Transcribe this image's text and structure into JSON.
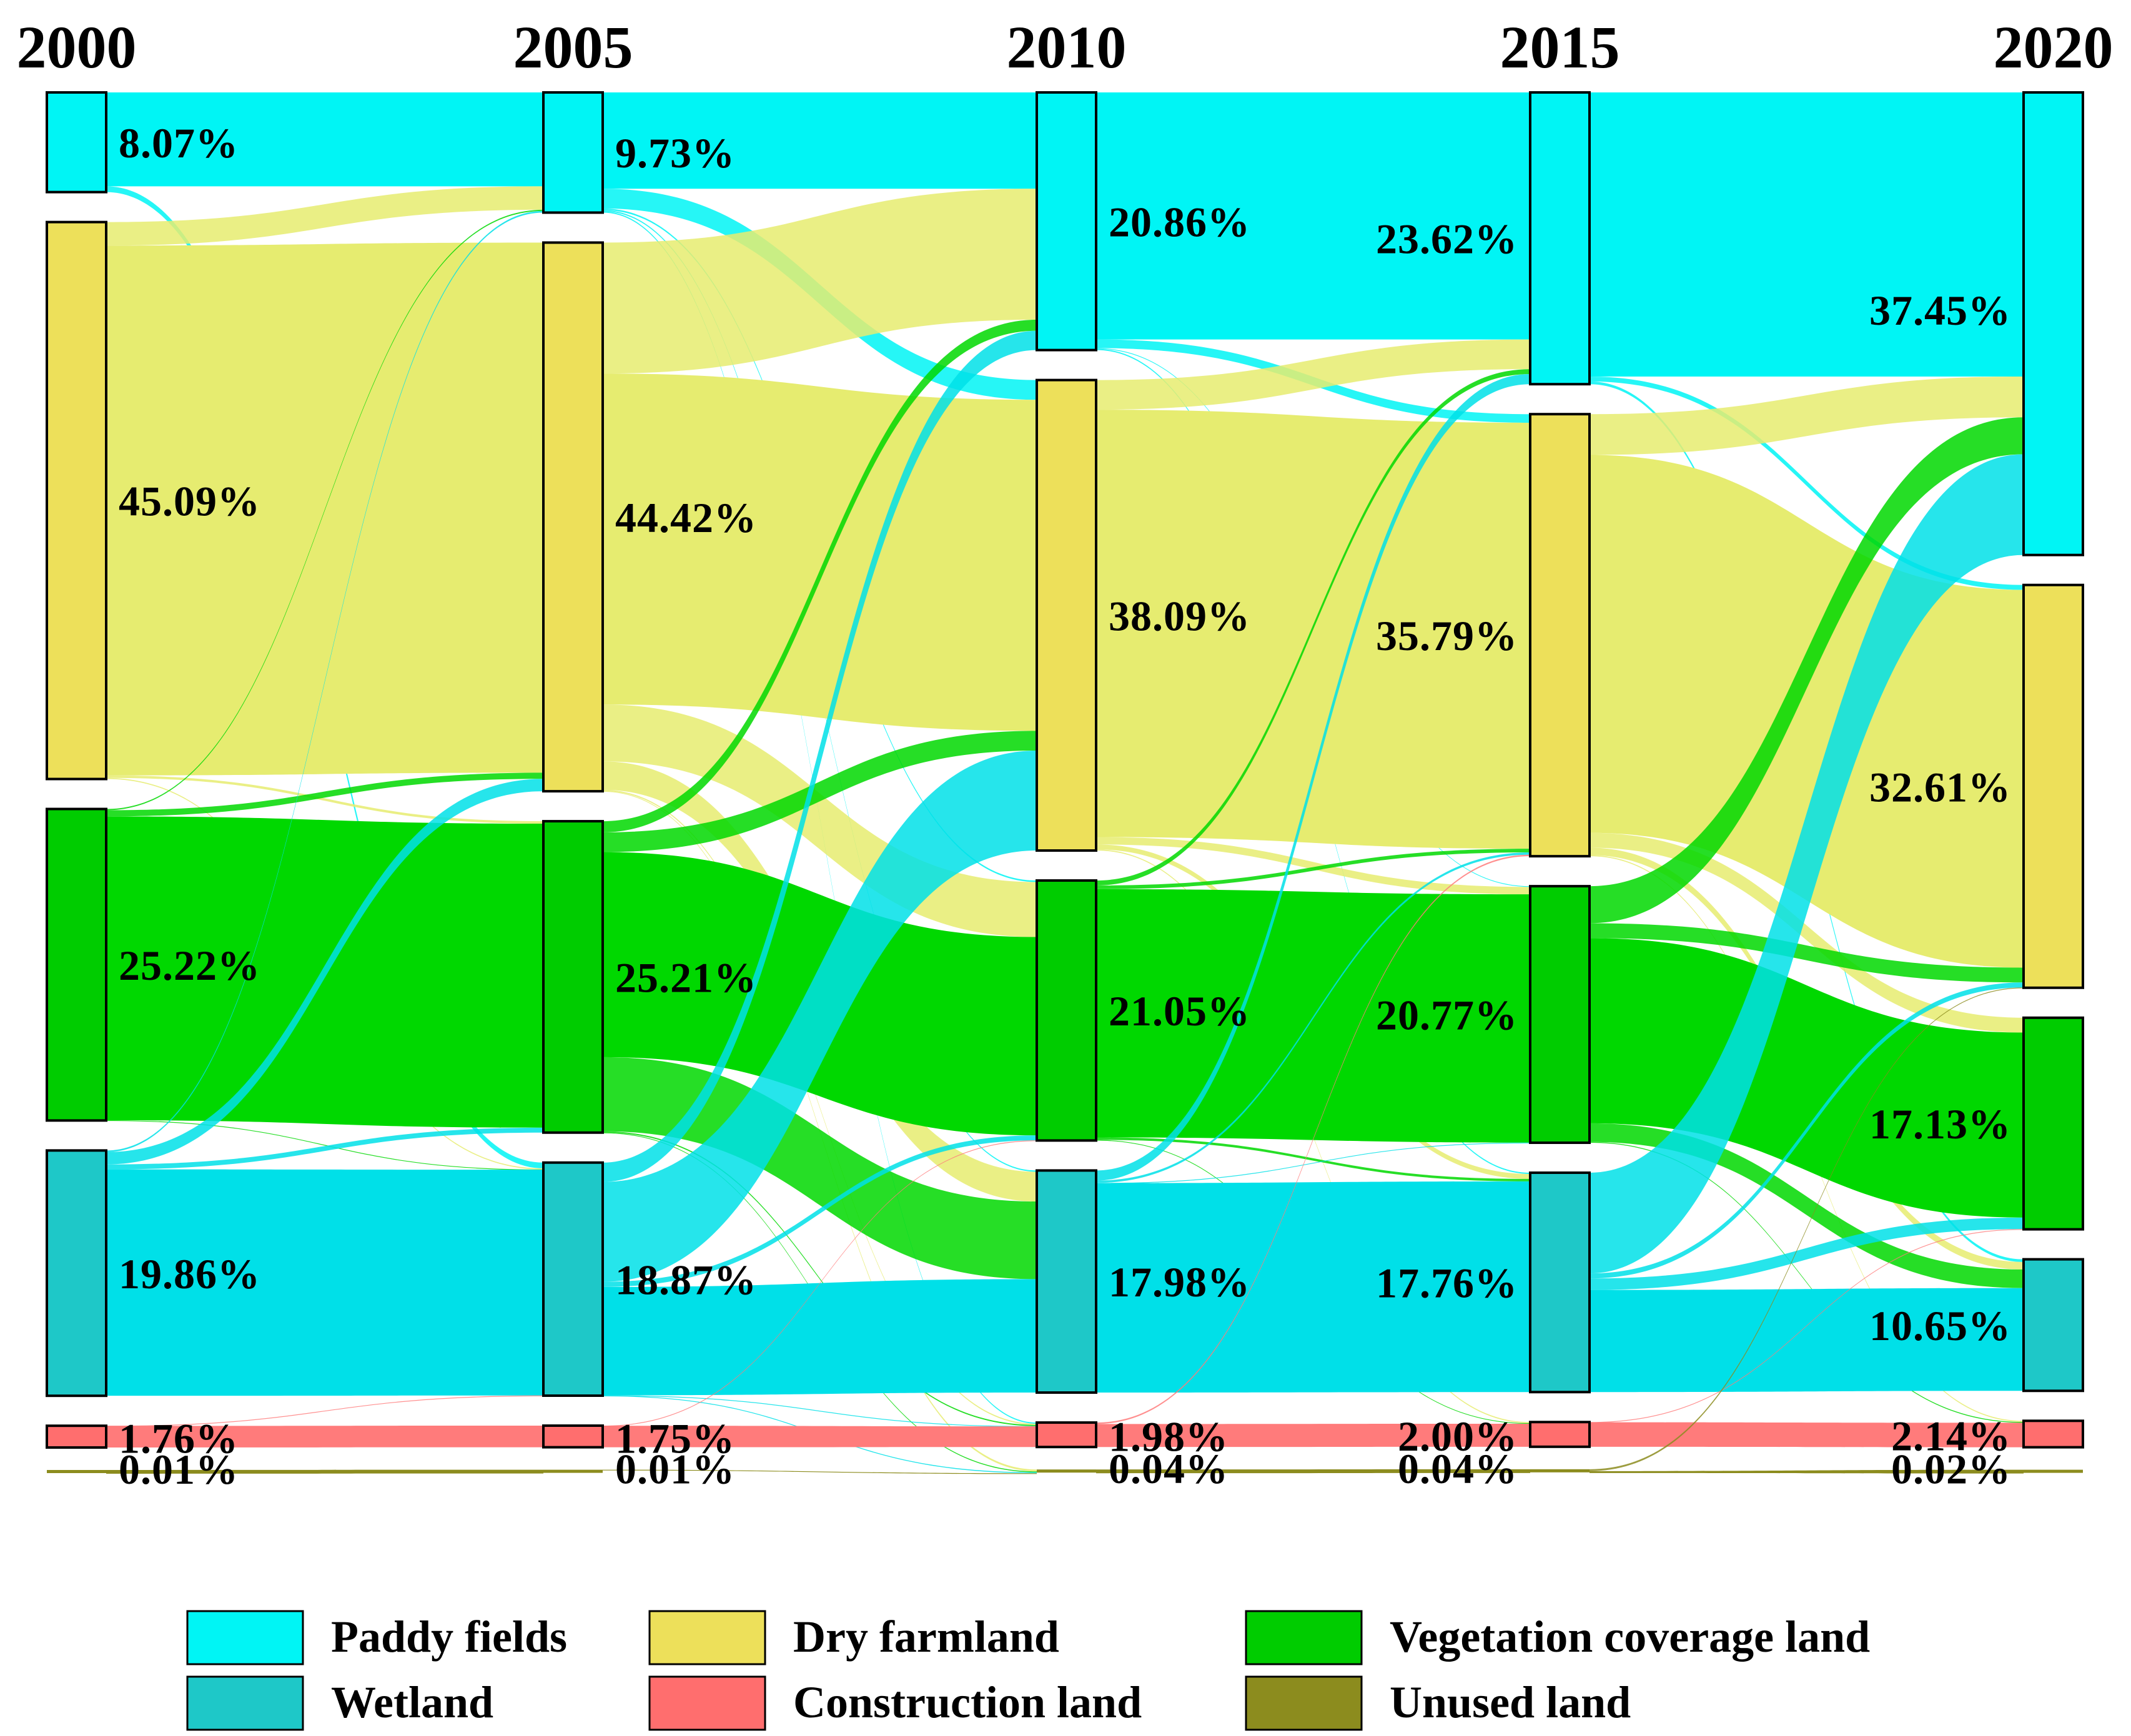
{
  "chart_data": {
    "type": "sankey",
    "years": [
      "2000",
      "2005",
      "2010",
      "2015",
      "2020"
    ],
    "categories": [
      {
        "key": "paddy",
        "name": "Paddy fields",
        "node_color": "#00f5f5",
        "flow_color": "#00f5f5"
      },
      {
        "key": "dry",
        "name": "Dry farmland",
        "node_color": "#ede05a",
        "flow_color": "#e6ec70"
      },
      {
        "key": "veg",
        "name": "Vegetation coverage land",
        "node_color": "#00cc00",
        "flow_color": "#00d800"
      },
      {
        "key": "wetland",
        "name": "Wetland",
        "node_color": "#1ec8c8",
        "flow_color": "#00e0e8"
      },
      {
        "key": "construction",
        "name": "Construction land",
        "node_color": "#ff6e6e",
        "flow_color": "#ff7b7b"
      },
      {
        "key": "unused",
        "name": "Unused land",
        "node_color": "#8c8c1e",
        "flow_color": "#8c8c1e"
      }
    ],
    "values": {
      "paddy": [
        8.07,
        9.73,
        20.86,
        23.62,
        37.45
      ],
      "dry": [
        45.09,
        44.42,
        38.09,
        35.79,
        32.61
      ],
      "veg": [
        25.22,
        25.21,
        21.05,
        20.77,
        17.13
      ],
      "wetland": [
        19.86,
        18.87,
        17.98,
        17.76,
        10.65
      ],
      "construction": [
        1.76,
        1.75,
        1.98,
        2.0,
        2.14
      ],
      "unused": [
        0.01,
        0.01,
        0.04,
        0.04,
        0.02
      ]
    },
    "labels": {
      "paddy": [
        "8.07%",
        "9.73%",
        "20.86%",
        "23.62%",
        "37.45%"
      ],
      "dry": [
        "45.09%",
        "44.42%",
        "38.09%",
        "35.79%",
        "32.61%"
      ],
      "veg": [
        "25.22%",
        "25.21%",
        "21.05%",
        "20.77%",
        "17.13%"
      ],
      "wetland": [
        "19.86%",
        "18.87%",
        "17.98%",
        "17.76%",
        "10.65%"
      ],
      "construction": [
        "1.76%",
        "1.75%",
        "1.98%",
        "2.00%",
        "2.14%"
      ],
      "unused": [
        "0.01%",
        "0.01%",
        "0.04%",
        "0.04%",
        "0.02%"
      ]
    },
    "flows": [
      [
        [
          "paddy",
          "paddy",
          7.6
        ],
        [
          "paddy",
          "wetland",
          0.47
        ],
        [
          "dry",
          "paddy",
          1.9
        ],
        [
          "dry",
          "dry",
          42.9
        ],
        [
          "dry",
          "veg",
          0.2
        ],
        [
          "dry",
          "wetland",
          0.09
        ],
        [
          "veg",
          "paddy",
          0.1
        ],
        [
          "veg",
          "dry",
          0.5
        ],
        [
          "veg",
          "veg",
          24.6
        ],
        [
          "veg",
          "wetland",
          0.02
        ],
        [
          "wetland",
          "paddy",
          0.13
        ],
        [
          "wetland",
          "dry",
          1.0
        ],
        [
          "wetland",
          "veg",
          0.4
        ],
        [
          "wetland",
          "wetland",
          18.33
        ],
        [
          "construction",
          "construction",
          1.75
        ],
        [
          "construction",
          "wetland",
          0.01
        ],
        [
          "unused",
          "unused",
          0.01
        ]
      ],
      [
        [
          "paddy",
          "paddy",
          7.8
        ],
        [
          "paddy",
          "dry",
          1.6
        ],
        [
          "paddy",
          "veg",
          0.13
        ],
        [
          "paddy",
          "wetland",
          0.1
        ],
        [
          "paddy",
          "construction",
          0.1
        ],
        [
          "dry",
          "paddy",
          10.6
        ],
        [
          "dry",
          "dry",
          26.8
        ],
        [
          "dry",
          "veg",
          4.6
        ],
        [
          "dry",
          "wetland",
          2.3
        ],
        [
          "dry",
          "construction",
          0.1
        ],
        [
          "dry",
          "unused",
          0.02
        ],
        [
          "veg",
          "paddy",
          0.9
        ],
        [
          "veg",
          "dry",
          1.6
        ],
        [
          "veg",
          "veg",
          16.6
        ],
        [
          "veg",
          "wetland",
          6.0
        ],
        [
          "veg",
          "construction",
          0.1
        ],
        [
          "veg",
          "unused",
          0.01
        ],
        [
          "wetland",
          "paddy",
          1.56
        ],
        [
          "wetland",
          "dry",
          8.09
        ],
        [
          "wetland",
          "veg",
          0.42
        ],
        [
          "wetland",
          "wetland",
          8.77
        ],
        [
          "wetland",
          "construction",
          0.02
        ],
        [
          "wetland",
          "unused",
          0.01
        ],
        [
          "construction",
          "construction",
          1.74
        ],
        [
          "construction",
          "veg",
          0.01
        ],
        [
          "unused",
          "unused",
          0.0
        ]
      ],
      [
        [
          "paddy",
          "paddy",
          20.0
        ],
        [
          "paddy",
          "dry",
          0.7
        ],
        [
          "paddy",
          "veg",
          0.06
        ],
        [
          "paddy",
          "wetland",
          0.1
        ],
        [
          "dry",
          "paddy",
          2.4
        ],
        [
          "dry",
          "dry",
          34.6
        ],
        [
          "dry",
          "veg",
          0.6
        ],
        [
          "dry",
          "wetland",
          0.4
        ],
        [
          "dry",
          "construction",
          0.09
        ],
        [
          "veg",
          "paddy",
          0.4
        ],
        [
          "veg",
          "dry",
          0.3
        ],
        [
          "veg",
          "veg",
          20.1
        ],
        [
          "veg",
          "wetland",
          0.2
        ],
        [
          "veg",
          "construction",
          0.05
        ],
        [
          "wetland",
          "paddy",
          0.82
        ],
        [
          "wetland",
          "dry",
          0.19
        ],
        [
          "wetland",
          "veg",
          0.01
        ],
        [
          "wetland",
          "wetland",
          16.96
        ],
        [
          "construction",
          "construction",
          1.86
        ],
        [
          "construction",
          "dry",
          0.12
        ],
        [
          "unused",
          "unused",
          0.04
        ]
      ],
      [
        [
          "paddy",
          "paddy",
          23.0
        ],
        [
          "paddy",
          "dry",
          0.4
        ],
        [
          "paddy",
          "wetland",
          0.22
        ],
        [
          "dry",
          "paddy",
          3.3
        ],
        [
          "dry",
          "dry",
          30.6
        ],
        [
          "dry",
          "veg",
          1.2
        ],
        [
          "dry",
          "wetland",
          0.6
        ],
        [
          "dry",
          "construction",
          0.09
        ],
        [
          "veg",
          "paddy",
          3.0
        ],
        [
          "veg",
          "dry",
          1.2
        ],
        [
          "veg",
          "veg",
          15.0
        ],
        [
          "veg",
          "wetland",
          1.5
        ],
        [
          "veg",
          "construction",
          0.07
        ],
        [
          "wetland",
          "paddy",
          8.15
        ],
        [
          "wetland",
          "dry",
          0.41
        ],
        [
          "wetland",
          "veg",
          0.93
        ],
        [
          "wetland",
          "wetland",
          8.27
        ],
        [
          "construction",
          "construction",
          1.98
        ],
        [
          "construction",
          "veg",
          0.02
        ],
        [
          "unused",
          "unused",
          0.02
        ],
        [
          "unused",
          "dry",
          0.02
        ]
      ]
    ],
    "legend": {
      "position": "bottom",
      "items": [
        "Paddy fields",
        "Dry farmland",
        "Vegetation coverage land",
        "Wetland",
        "Construction land",
        "Unused land"
      ]
    }
  }
}
